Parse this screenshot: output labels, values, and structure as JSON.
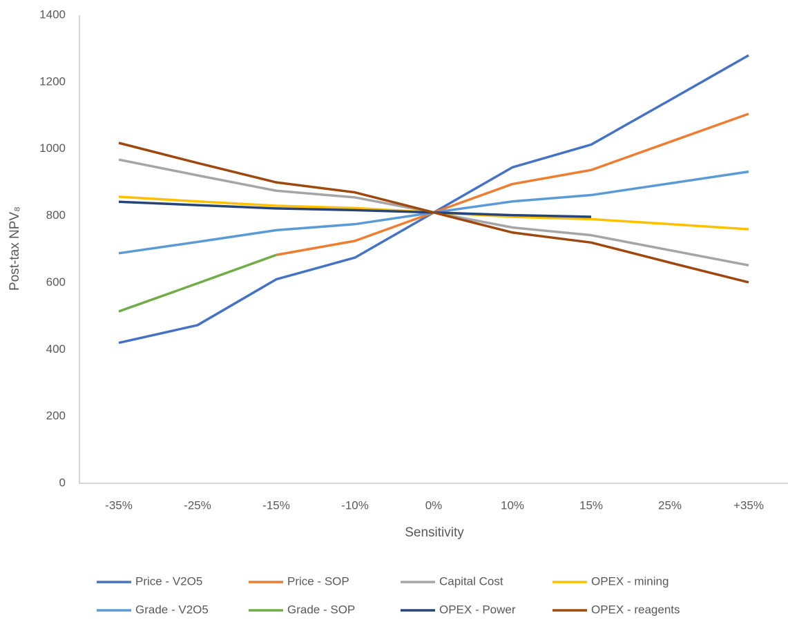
{
  "chart_data": {
    "type": "line",
    "x_label": "Sensitivity",
    "y_label": "Post-tax NPV₈",
    "categories": [
      "-35%",
      "-25%",
      "-15%",
      "-10%",
      "0%",
      "10%",
      "15%",
      "25%",
      "+35%"
    ],
    "ylim": [
      0,
      1400
    ],
    "yticks": [
      0,
      200,
      400,
      600,
      800,
      1000,
      1200,
      1400
    ],
    "series": [
      {
        "name": "Price - V2O5",
        "color": "#4472c4",
        "values": [
          420,
          473,
          610,
          675,
          810,
          945,
          1013,
          1146,
          1280
        ]
      },
      {
        "name": "Price - SOP",
        "color": "#ed7d31",
        "values": [
          null,
          null,
          683,
          725,
          810,
          895,
          937,
          1021,
          1105
        ]
      },
      {
        "name": "Capital Cost",
        "color": "#a5a5a5",
        "values": [
          968,
          921,
          875,
          855,
          810,
          765,
          742,
          697,
          652
        ]
      },
      {
        "name": "OPEX - mining",
        "color": "#ffc000",
        "values": [
          857,
          843,
          830,
          823,
          810,
          797,
          790,
          775,
          760
        ]
      },
      {
        "name": "Grade - V2O5",
        "color": "#5b9bd5",
        "values": [
          688,
          722,
          757,
          775,
          810,
          843,
          862,
          897,
          932
        ]
      },
      {
        "name": "Grade - SOP",
        "color": "#70ad47",
        "values": [
          514,
          598,
          683,
          null,
          null,
          null,
          null,
          null,
          null
        ]
      },
      {
        "name": "OPEX - Power",
        "color": "#264478",
        "values": [
          842,
          832,
          822,
          817,
          810,
          802,
          797,
          null,
          null
        ]
      },
      {
        "name": "OPEX - reagents",
        "color": "#9e480e",
        "values": [
          1018,
          958,
          900,
          870,
          810,
          750,
          720,
          660,
          601
        ]
      }
    ]
  }
}
